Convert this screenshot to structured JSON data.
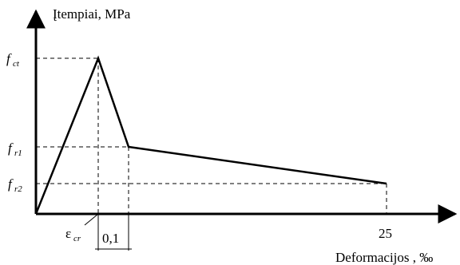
{
  "axes": {
    "y_label": "Įtempiai, MPa",
    "x_label": "Deformacijos , ‰"
  },
  "y_levels": [
    {
      "id": "fct",
      "main": "f",
      "sub": "ct"
    },
    {
      "id": "fr1",
      "main": "f",
      "sub": "r1"
    },
    {
      "id": "fr2",
      "main": "f",
      "sub": "r2"
    }
  ],
  "x_marks": {
    "eps_main": "ε",
    "eps_sub": "cr",
    "offset": "0,1",
    "end": "25"
  },
  "curve": {
    "points": [
      {
        "x": "0",
        "y": "0"
      },
      {
        "x": "ε_cr",
        "y": "f_ct"
      },
      {
        "x": "ε_cr + 0,1",
        "y": "f_r1"
      },
      {
        "x": "25",
        "y": "f_r2"
      }
    ]
  }
}
